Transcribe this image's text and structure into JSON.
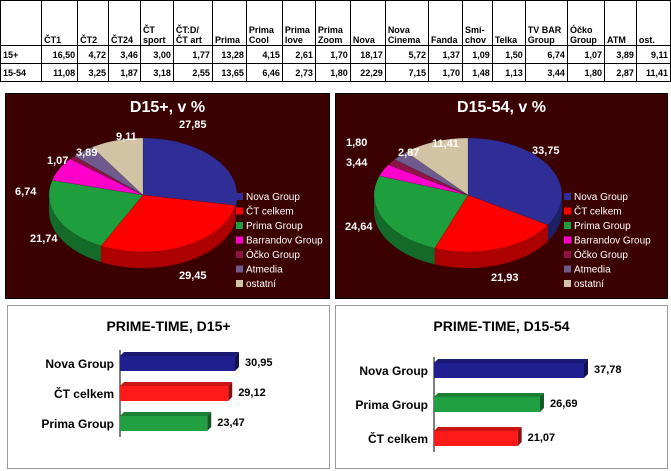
{
  "table": {
    "headers": [
      "",
      "ČT1",
      "ČT2",
      "ČT24",
      "ČT sport",
      "ČT:D/ ČT art",
      "Prima",
      "Prima Cool",
      "Prima love",
      "Prima Zoom",
      "Nova",
      "Nova Cinema",
      "Fanda",
      "Smí-chov",
      "Telka",
      "TV BAR Group",
      "Óčko Group",
      "ATM",
      "ost."
    ],
    "rows": [
      {
        "label": "15+",
        "values": [
          "16,50",
          "4,72",
          "3,46",
          "3,00",
          "1,77",
          "13,28",
          "4,15",
          "2,61",
          "1,70",
          "18,17",
          "5,72",
          "1,37",
          "1,09",
          "1,50",
          "6,74",
          "1,07",
          "3,89",
          "9,11"
        ]
      },
      {
        "label": "15-54",
        "values": [
          "11,08",
          "3,25",
          "1,87",
          "3,18",
          "2,55",
          "13,65",
          "6,46",
          "2,73",
          "1,80",
          "22,29",
          "7,15",
          "1,70",
          "1,48",
          "1,13",
          "3,44",
          "1,80",
          "2,87",
          "11,41"
        ]
      }
    ]
  },
  "legend": [
    "Nova Group",
    "ČT celkem",
    "Prima Group",
    "Barrandov Group",
    "Óčko Group",
    "Atmedia",
    "ostatní"
  ],
  "colors": {
    "nova": "#2e2e96",
    "ct": "#ff0000",
    "prima": "#1e9e3c",
    "barrandov": "#ff00cc",
    "ocko": "#8c1446",
    "atmedia": "#6e5a8c",
    "ostatni": "#d2c3a5",
    "panel_bg": "#3b0000"
  },
  "chart_data": [
    {
      "type": "pie",
      "title": "D15+, v %",
      "labels": [
        "Nova Group",
        "ČT celkem",
        "Prima Group",
        "Barrandov Group",
        "Óčko Group",
        "Atmedia",
        "ostatní"
      ],
      "values": [
        27.85,
        29.45,
        21.74,
        6.74,
        1.07,
        3.89,
        9.11
      ],
      "value_labels": [
        "27,85",
        "29,45",
        "21,74",
        "6,74",
        "1,07",
        "3,89",
        "9,11"
      ],
      "legend_position": "right"
    },
    {
      "type": "pie",
      "title": "D15-54, v %",
      "labels": [
        "Nova Group",
        "ČT celkem",
        "Prima Group",
        "Barrandov Group",
        "Óčko Group",
        "Atmedia",
        "ostatní"
      ],
      "values": [
        33.75,
        21.93,
        24.64,
        3.44,
        1.8,
        2.87,
        11.41
      ],
      "value_labels": [
        "33,75",
        "21,93",
        "24,64",
        "3,44",
        "1,80",
        "2,87",
        "11,41"
      ],
      "legend_position": "right"
    },
    {
      "type": "bar",
      "orientation": "horizontal",
      "title": "PRIME-TIME, D15+",
      "categories": [
        "Nova Group",
        "ČT celkem",
        "Prima Group"
      ],
      "values": [
        30.95,
        29.12,
        23.47
      ],
      "value_labels": [
        "30,95",
        "29,12",
        "23,47"
      ],
      "colors": [
        "#1f1f8f",
        "#ff1a1a",
        "#20a040"
      ]
    },
    {
      "type": "bar",
      "orientation": "horizontal",
      "title": "PRIME-TIME, D15-54",
      "categories": [
        "Nova Group",
        "Prima Group",
        "ČT celkem"
      ],
      "values": [
        37.78,
        26.69,
        21.07
      ],
      "value_labels": [
        "37,78",
        "26,69",
        "21,07"
      ],
      "colors": [
        "#1f1f8f",
        "#20a040",
        "#ff1a1a"
      ]
    }
  ]
}
